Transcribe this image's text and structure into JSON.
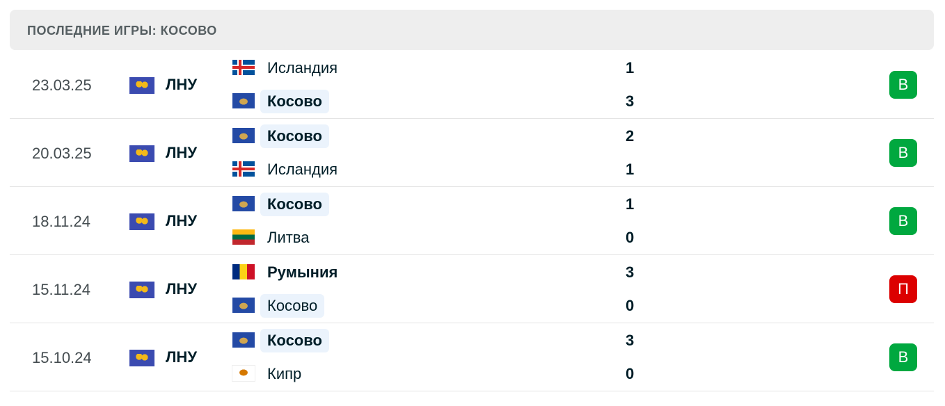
{
  "header": {
    "title": "ПОСЛЕДНИЕ ИГРЫ: КОСОВО"
  },
  "colors": {
    "win": "#00a83f",
    "loss": "#dc0000"
  },
  "matches": [
    {
      "date": "23.03.25",
      "league": "ЛНУ",
      "home": {
        "name": "Исландия",
        "flag": "iceland",
        "score": "1",
        "own": false,
        "bold": false
      },
      "away": {
        "name": "Косово",
        "flag": "kosovo",
        "score": "3",
        "own": true,
        "bold": true
      },
      "result": "В",
      "result_type": "win"
    },
    {
      "date": "20.03.25",
      "league": "ЛНУ",
      "home": {
        "name": "Косово",
        "flag": "kosovo",
        "score": "2",
        "own": true,
        "bold": true
      },
      "away": {
        "name": "Исландия",
        "flag": "iceland",
        "score": "1",
        "own": false,
        "bold": false
      },
      "result": "В",
      "result_type": "win"
    },
    {
      "date": "18.11.24",
      "league": "ЛНУ",
      "home": {
        "name": "Косово",
        "flag": "kosovo",
        "score": "1",
        "own": true,
        "bold": true
      },
      "away": {
        "name": "Литва",
        "flag": "lithuania",
        "score": "0",
        "own": false,
        "bold": false
      },
      "result": "В",
      "result_type": "win"
    },
    {
      "date": "15.11.24",
      "league": "ЛНУ",
      "home": {
        "name": "Румыния",
        "flag": "romania",
        "score": "3",
        "own": false,
        "bold": true
      },
      "away": {
        "name": "Косово",
        "flag": "kosovo",
        "score": "0",
        "own": true,
        "bold": false
      },
      "result": "П",
      "result_type": "loss"
    },
    {
      "date": "15.10.24",
      "league": "ЛНУ",
      "home": {
        "name": "Косово",
        "flag": "kosovo",
        "score": "3",
        "own": true,
        "bold": true
      },
      "away": {
        "name": "Кипр",
        "flag": "cyprus",
        "score": "0",
        "own": false,
        "bold": false
      },
      "result": "В",
      "result_type": "win"
    }
  ]
}
